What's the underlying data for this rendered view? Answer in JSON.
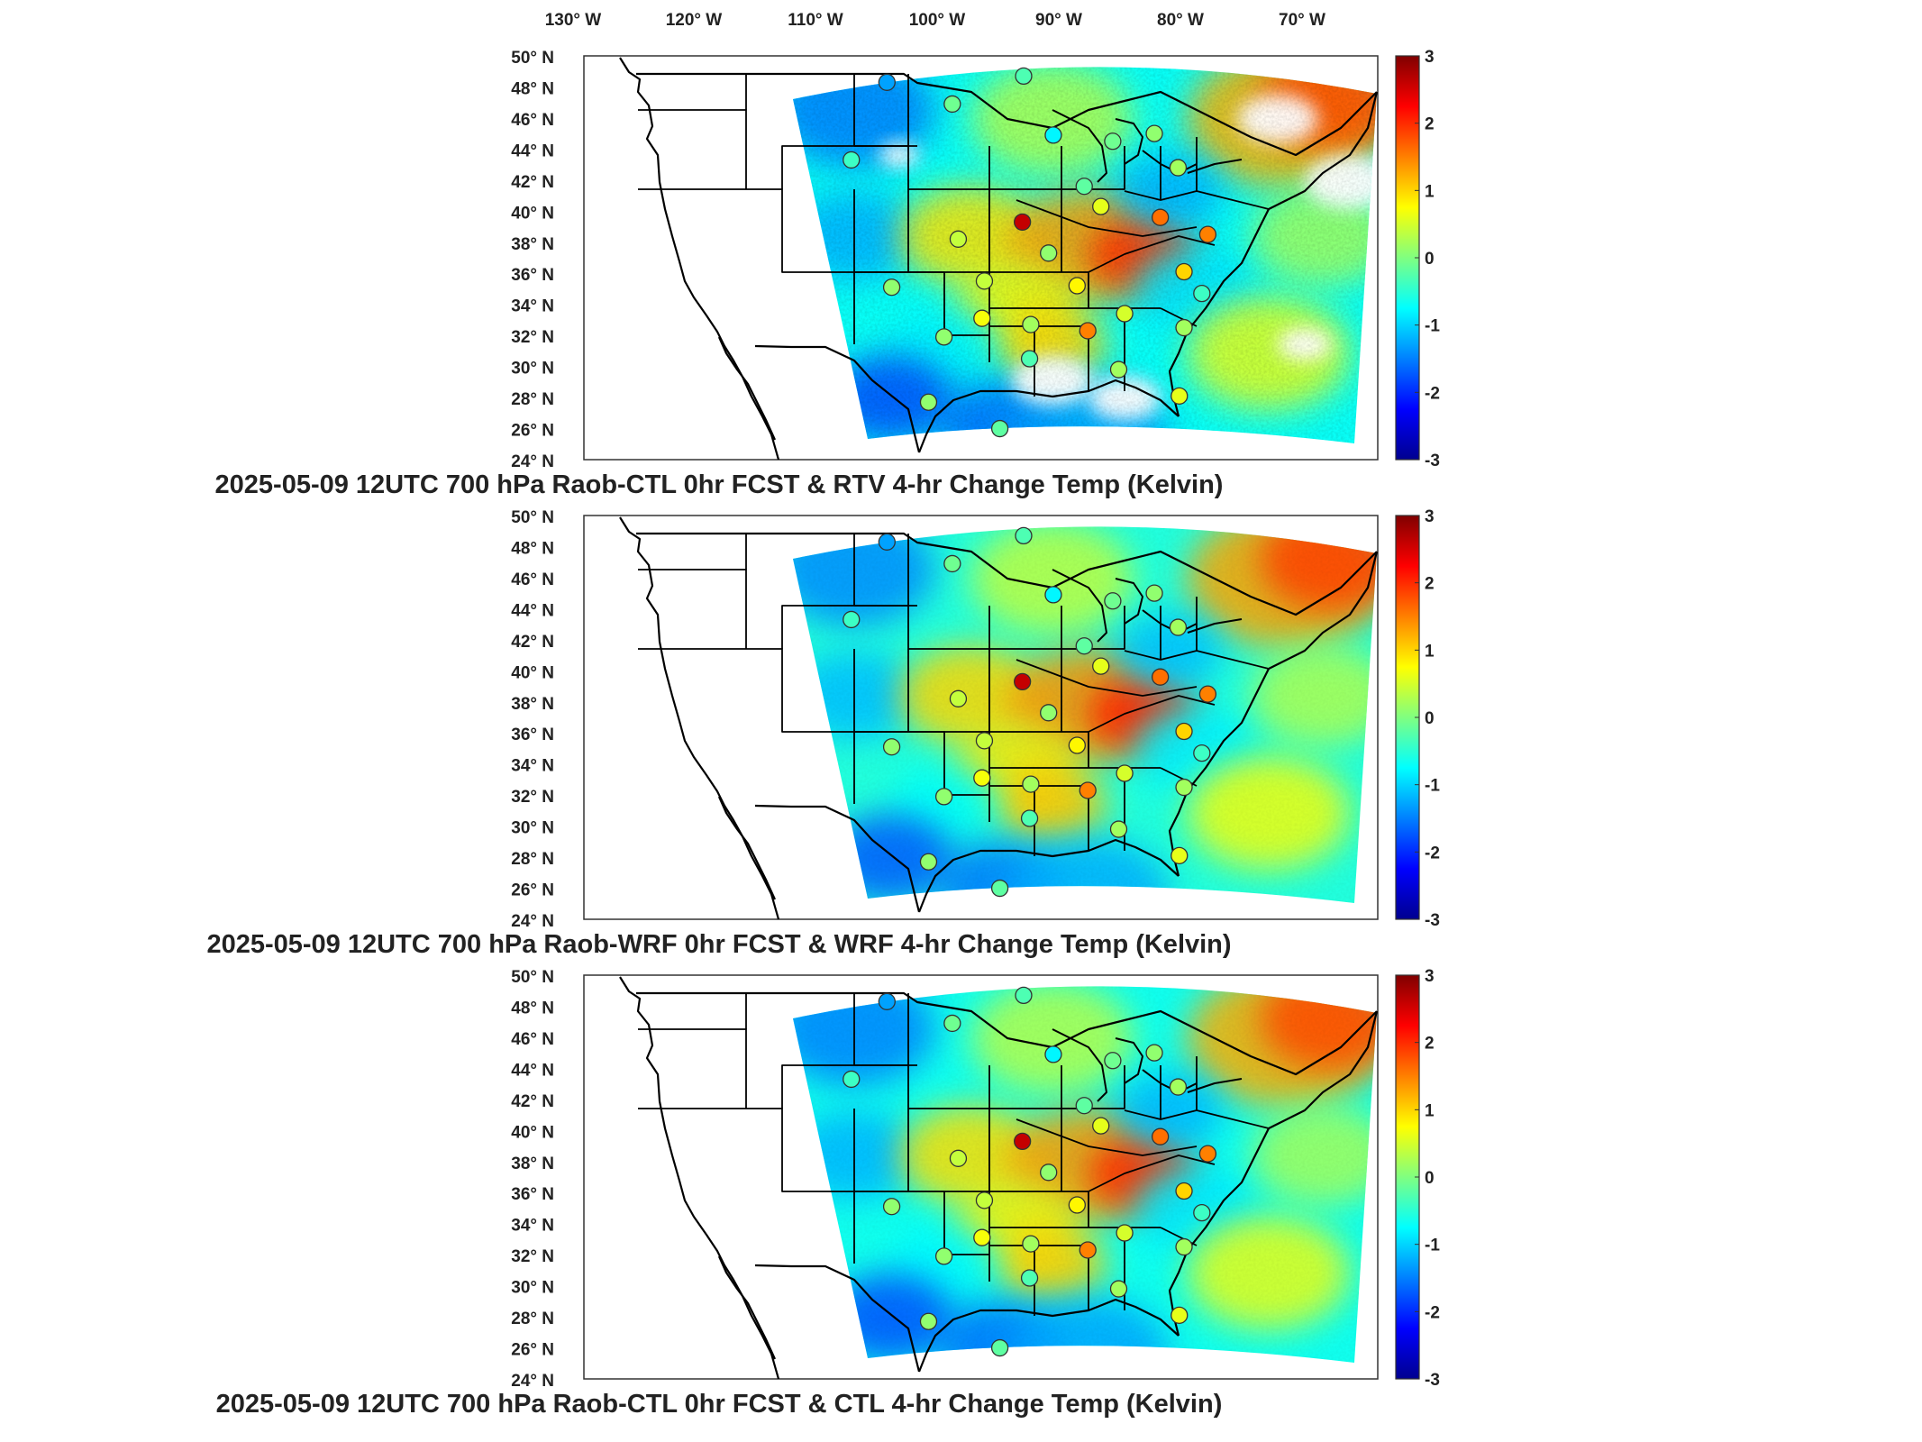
{
  "lon_labels": [
    "130",
    "120",
    "110",
    "100",
    "90",
    "80",
    "70"
  ],
  "lon_hemi": "W",
  "lat_labels": [
    "50",
    "48",
    "46",
    "44",
    "42",
    "40",
    "38",
    "36",
    "34",
    "32",
    "30",
    "28",
    "26",
    "24"
  ],
  "lat_hemi": "N",
  "degree_symbol": "°",
  "colorbar": {
    "ticks": [
      "3",
      "2",
      "1",
      "0",
      "-1",
      "-2",
      "-3"
    ],
    "range": [
      -3,
      3
    ],
    "colormap": [
      "#00008f",
      "#0000ff",
      "#0080ff",
      "#00ffff",
      "#80ff80",
      "#ffff00",
      "#ff8000",
      "#ff0000",
      "#800000"
    ]
  },
  "panels": [
    {
      "title": "2025-05-09 12UTC 700 hPa Raob-CTL 0hr FCST & RTV 4-hr Change Temp (Kelvin)"
    },
    {
      "title": "2025-05-09 12UTC 700 hPa Raob-WRF 0hr FCST & WRF 4-hr Change Temp (Kelvin)"
    },
    {
      "title": "2025-05-09 12UTC 700 hPa Raob-CTL 0hr FCST & CTL 4-hr Change Temp (Kelvin)"
    }
  ],
  "stations": [
    {
      "lat": 48.3,
      "lon": -107.0,
      "value": -1.3
    },
    {
      "lat": 48.7,
      "lon": -95.5,
      "value": -0.3
    },
    {
      "lat": 46.9,
      "lon": -101.5,
      "value": -0.1
    },
    {
      "lat": 43.3,
      "lon": -110.0,
      "value": -0.4
    },
    {
      "lat": 44.9,
      "lon": -93.0,
      "value": -0.8
    },
    {
      "lat": 44.5,
      "lon": -88.0,
      "value": -0.1
    },
    {
      "lat": 45.0,
      "lon": -84.5,
      "value": 0.1
    },
    {
      "lat": 42.8,
      "lon": -82.5,
      "value": 0.2
    },
    {
      "lat": 41.6,
      "lon": -90.4,
      "value": -0.2
    },
    {
      "lat": 40.3,
      "lon": -89.0,
      "value": 0.6
    },
    {
      "lat": 39.3,
      "lon": -95.6,
      "value": 2.6
    },
    {
      "lat": 39.6,
      "lon": -84.0,
      "value": 1.6
    },
    {
      "lat": 38.5,
      "lon": -80.0,
      "value": 1.5
    },
    {
      "lat": 38.2,
      "lon": -101.0,
      "value": 0.4
    },
    {
      "lat": 37.3,
      "lon": -93.4,
      "value": 0.1
    },
    {
      "lat": 36.1,
      "lon": -82.0,
      "value": 1.0
    },
    {
      "lat": 35.1,
      "lon": -106.6,
      "value": 0.1
    },
    {
      "lat": 35.5,
      "lon": -98.8,
      "value": 0.4
    },
    {
      "lat": 35.2,
      "lon": -91.0,
      "value": 0.8
    },
    {
      "lat": 34.7,
      "lon": -80.5,
      "value": -0.4
    },
    {
      "lat": 33.4,
      "lon": -87.0,
      "value": 0.5
    },
    {
      "lat": 33.1,
      "lon": -99.0,
      "value": 0.7
    },
    {
      "lat": 32.7,
      "lon": -94.9,
      "value": 0.2
    },
    {
      "lat": 32.3,
      "lon": -90.1,
      "value": 1.5
    },
    {
      "lat": 32.5,
      "lon": -82.0,
      "value": 0.2
    },
    {
      "lat": 31.9,
      "lon": -102.2,
      "value": 0.1
    },
    {
      "lat": 30.5,
      "lon": -95.0,
      "value": -0.3
    },
    {
      "lat": 29.8,
      "lon": -87.5,
      "value": 0.2
    },
    {
      "lat": 28.1,
      "lon": -82.4,
      "value": 0.6
    },
    {
      "lat": 27.7,
      "lon": -103.5,
      "value": 0.1
    },
    {
      "lat": 26.0,
      "lon": -97.5,
      "value": -0.2
    }
  ]
}
